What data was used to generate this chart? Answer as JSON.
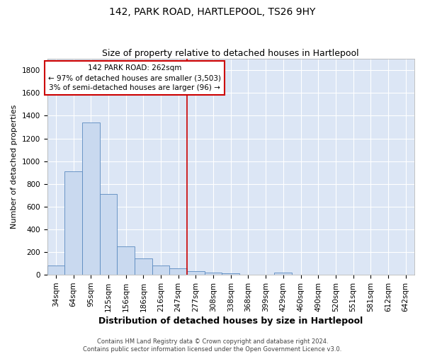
{
  "title": "142, PARK ROAD, HARTLEPOOL, TS26 9HY",
  "subtitle": "Size of property relative to detached houses in Hartlepool",
  "xlabel": "Distribution of detached houses by size in Hartlepool",
  "ylabel": "Number of detached properties",
  "categories": [
    "34sqm",
    "64sqm",
    "95sqm",
    "125sqm",
    "156sqm",
    "186sqm",
    "216sqm",
    "247sqm",
    "277sqm",
    "308sqm",
    "338sqm",
    "368sqm",
    "399sqm",
    "429sqm",
    "460sqm",
    "490sqm",
    "520sqm",
    "551sqm",
    "581sqm",
    "612sqm",
    "642sqm"
  ],
  "values": [
    80,
    910,
    1340,
    710,
    248,
    143,
    80,
    57,
    30,
    22,
    15,
    0,
    0,
    20,
    0,
    0,
    0,
    0,
    0,
    0,
    0
  ],
  "bar_color": "#c9d9ef",
  "bar_edge_color": "#5a8abf",
  "vline_x_index": 8,
  "vline_color": "#cc0000",
  "annotation_text": "142 PARK ROAD: 262sqm\n← 97% of detached houses are smaller (3,503)\n3% of semi-detached houses are larger (96) →",
  "annotation_box_edgecolor": "#cc0000",
  "ylim": [
    0,
    1900
  ],
  "yticks": [
    0,
    200,
    400,
    600,
    800,
    1000,
    1200,
    1400,
    1600,
    1800
  ],
  "background_color": "#dce6f5",
  "grid_color": "#ffffff",
  "footer_line1": "Contains HM Land Registry data © Crown copyright and database right 2024.",
  "footer_line2": "Contains public sector information licensed under the Open Government Licence v3.0.",
  "title_fontsize": 10,
  "subtitle_fontsize": 9,
  "xlabel_fontsize": 9,
  "ylabel_fontsize": 8,
  "tick_fontsize": 7.5,
  "annotation_fontsize": 7.5,
  "footer_fontsize": 6
}
